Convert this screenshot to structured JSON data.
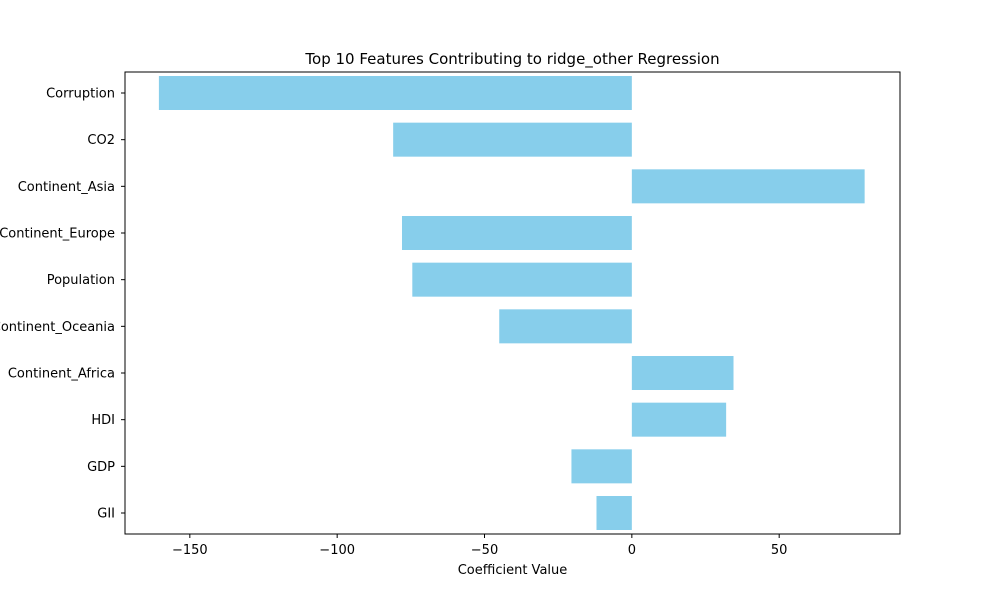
{
  "chart_data": {
    "type": "bar",
    "orientation": "horizontal",
    "title": "Top 10 Features Contributing to ridge_other Regression",
    "xlabel": "Coefficient Value",
    "ylabel": "",
    "categories": [
      "Corruption",
      "CO2",
      "Continent_Asia",
      "Continent_Europe",
      "Population",
      "Continent_Oceania",
      "Continent_Africa",
      "HDI",
      "GDP",
      "GII"
    ],
    "values": [
      -160.5,
      -81,
      79,
      -78,
      -74.5,
      -45,
      34.5,
      32,
      -20.5,
      -12
    ],
    "xlim": [
      -172,
      91
    ],
    "xticks": [
      -150,
      -100,
      -50,
      0,
      50
    ],
    "xtick_labels": [
      "−150",
      "−100",
      "−50",
      "0",
      "50"
    ],
    "bar_color": "#87CEEB",
    "grid": false
  }
}
